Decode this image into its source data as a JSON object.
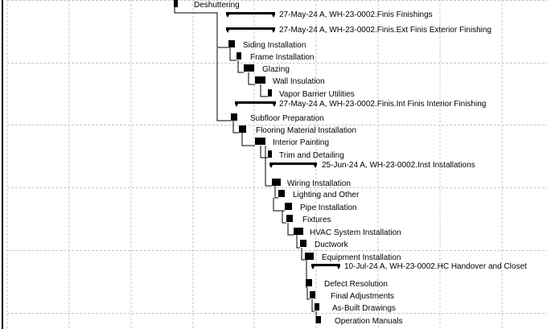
{
  "view": "gantt-chart",
  "colors": {
    "bar": "#000000",
    "grid": "#c8c8c8",
    "link": "#000000",
    "frame": "#000000",
    "background": "#ffffff"
  },
  "activities": [
    {
      "id": "deshuttering",
      "label": "Deshuttering",
      "kind": "task"
    },
    {
      "id": "finishings",
      "label": "27-May-24 A, WH-23-0002.Finis  Finishings",
      "kind": "summary"
    },
    {
      "id": "exterior-finishing",
      "label": "27-May-24 A, WH-23-0002.Finis.Ext Finis  Exterior Finishing",
      "kind": "summary"
    },
    {
      "id": "siding-installation",
      "label": "Siding Installation",
      "kind": "task"
    },
    {
      "id": "frame-installation",
      "label": "Frame Installation",
      "kind": "task"
    },
    {
      "id": "glazing",
      "label": "Glazing",
      "kind": "task"
    },
    {
      "id": "wall-insulation",
      "label": "Wall Insulation",
      "kind": "task"
    },
    {
      "id": "vapor-barrier-utilities",
      "label": "Vapor Barrier Utilities",
      "kind": "task"
    },
    {
      "id": "interior-finishing",
      "label": "27-May-24 A, WH-23-0002.Finis.Int Finis  Interior Finishing",
      "kind": "summary"
    },
    {
      "id": "subfloor-preparation",
      "label": "Subfloor Preparation",
      "kind": "task"
    },
    {
      "id": "flooring-material-installation",
      "label": "Flooring Material Installation",
      "kind": "task"
    },
    {
      "id": "interior-painting",
      "label": "Interior Painting",
      "kind": "task"
    },
    {
      "id": "trim-and-detailing",
      "label": "Trim and Detailing",
      "kind": "task"
    },
    {
      "id": "installations",
      "label": "25-Jun-24 A, WH-23-0002.Inst  Installations",
      "kind": "summary"
    },
    {
      "id": "wiring-installation",
      "label": "Wiring Installation",
      "kind": "task"
    },
    {
      "id": "lighting-and-other",
      "label": "Lighting and Other",
      "kind": "task"
    },
    {
      "id": "pipe-installation",
      "label": "Pipe Installation",
      "kind": "task"
    },
    {
      "id": "fixtures",
      "label": "Fixtures",
      "kind": "task"
    },
    {
      "id": "hvac-system-installation",
      "label": "HVAC System Installation",
      "kind": "task"
    },
    {
      "id": "ductwork",
      "label": "Ductwork",
      "kind": "task"
    },
    {
      "id": "equipment-installation",
      "label": "Equipment Installation",
      "kind": "task"
    },
    {
      "id": "handover-and-closet",
      "label": "10-Jul-24 A, WH-23-0002.HC  Handover and Closet",
      "kind": "summary"
    },
    {
      "id": "defect-resolution",
      "label": "Defect Resolution",
      "kind": "task"
    },
    {
      "id": "final-adjustments",
      "label": "Final Adjustments",
      "kind": "task"
    },
    {
      "id": "as-built-drawings",
      "label": "As-Built Drawings",
      "kind": "task"
    },
    {
      "id": "operation-manuals",
      "label": "Operation Manuals",
      "kind": "task"
    }
  ]
}
